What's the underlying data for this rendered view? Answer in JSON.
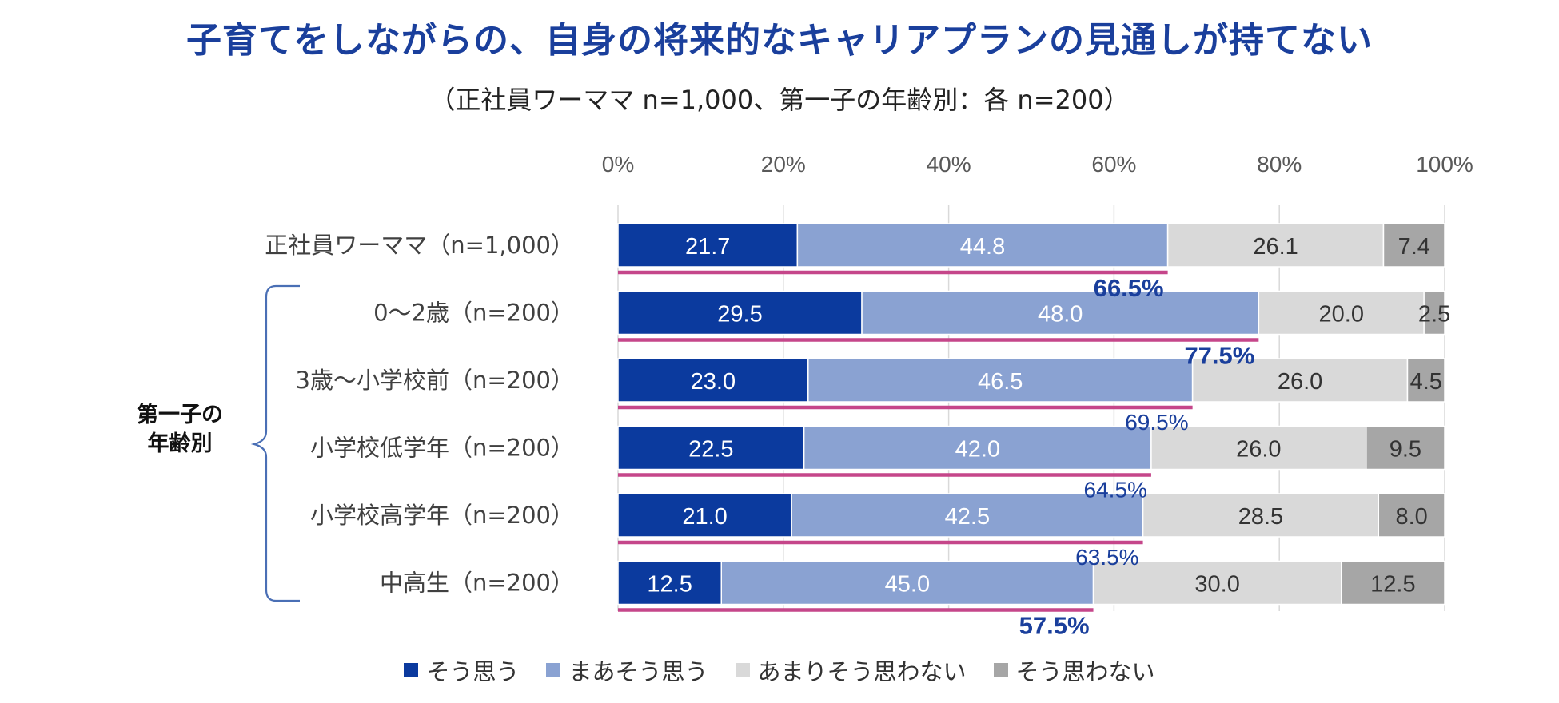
{
  "chart_data": {
    "type": "bar",
    "orientation": "horizontal",
    "stacked": "percent",
    "title": "子育てをしながらの、自身の将来的なキャリアプランの見通しが持てない",
    "subtitle": "（正社員ワーママ n=1,000、第一子の年齢別：各 n=200）",
    "group_label": [
      "第一子の",
      "年齢別"
    ],
    "xlim": [
      0,
      100
    ],
    "ticks": [
      "0%",
      "20%",
      "40%",
      "60%",
      "80%",
      "100%"
    ],
    "categories": [
      "正社員ワーママ（n=1,000）",
      "0〜2歳（n=200）",
      "3歳〜小学校前（n=200）",
      "小学校低学年（n=200）",
      "小学校高学年（n=200）",
      "中高生（n=200）"
    ],
    "series": [
      {
        "name": "そう思う",
        "color": "#0b3a9e",
        "text_color": "#ffffff",
        "values": [
          21.7,
          29.5,
          23.0,
          22.5,
          21.0,
          12.5
        ],
        "labels": [
          "21.7",
          "29.5",
          "23.0",
          "22.5",
          "21.0",
          "12.5"
        ]
      },
      {
        "name": "まあそう思う",
        "color": "#8aa2d2",
        "text_color": "#ffffff",
        "values": [
          44.8,
          48.0,
          46.5,
          42.0,
          42.5,
          45.0
        ],
        "labels": [
          "44.8",
          "48.0",
          "46.5",
          "42.0",
          "42.5",
          "45.0"
        ]
      },
      {
        "name": "あまりそう思わない",
        "color": "#d9d9d9",
        "text_color": "#333333",
        "values": [
          26.1,
          20.0,
          26.0,
          26.0,
          28.5,
          30.0
        ],
        "labels": [
          "26.1",
          "20.0",
          "26.0",
          "26.0",
          "28.5",
          "30.0"
        ]
      },
      {
        "name": "そう思わない",
        "color": "#a6a6a6",
        "text_color": "#333333",
        "values": [
          7.4,
          2.5,
          4.5,
          9.5,
          8.0,
          12.5
        ],
        "labels": [
          "7.4",
          "2.5",
          "4.5",
          "9.5",
          "8.0",
          "12.5"
        ]
      }
    ],
    "totals": {
      "values": [
        66.5,
        77.5,
        69.5,
        64.5,
        63.5,
        57.5
      ],
      "labels": [
        "66.5%",
        "77.5%",
        "69.5%",
        "64.5%",
        "63.5%",
        "57.5%"
      ],
      "emphasis": [
        true,
        true,
        false,
        false,
        false,
        true
      ],
      "line_color": "#c5468a",
      "text_color": "#1a3f9c"
    }
  }
}
